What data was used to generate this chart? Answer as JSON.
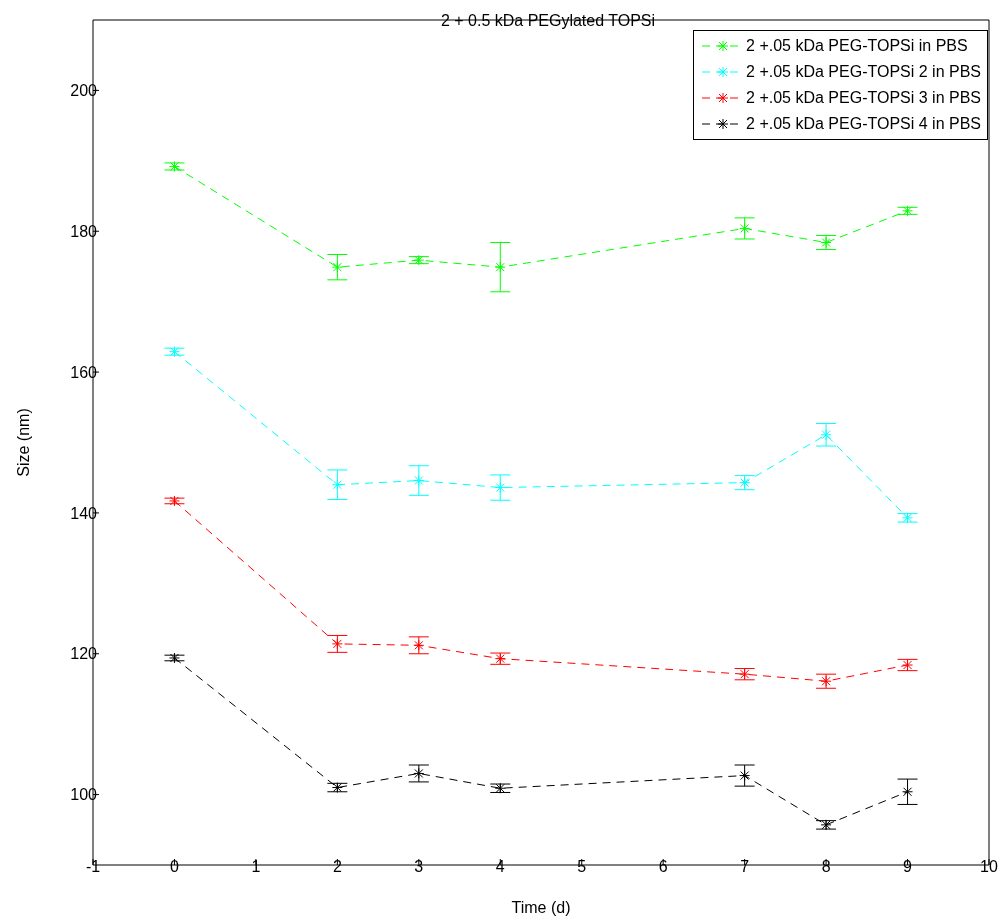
{
  "chart_data": {
    "type": "line",
    "title": "2 + 0.5 kDa PEGylated TOPSi",
    "xlabel": "Time (d)",
    "ylabel": "Size (nm)",
    "x": [
      0,
      2,
      3,
      4,
      7,
      8,
      9
    ],
    "series": [
      {
        "name": "2 +.05 kDa PEG-TOPSi in PBS",
        "color": "#00ff00",
        "values": [
          189.2,
          174.9,
          175.9,
          174.9,
          180.4,
          178.4,
          182.9
        ],
        "errors": [
          0.5,
          1.8,
          0.5,
          3.5,
          1.5,
          1,
          0.5
        ]
      },
      {
        "name": "2 +.05 kDa PEG-TOPSi 2 in PBS",
        "color": "#00ffff",
        "values": [
          162.9,
          144.0,
          144.6,
          143.6,
          144.3,
          151.1,
          139.3
        ],
        "errors": [
          0.5,
          2.1,
          2.1,
          1.8,
          1,
          1.6,
          0.6
        ]
      },
      {
        "name": "2 +.05 kDa PEG-TOPSi 3 in PBS",
        "color": "#ff0000",
        "values": [
          141.7,
          121.4,
          121.2,
          119.3,
          117.1,
          116.1,
          118.4
        ],
        "errors": [
          0.4,
          1.2,
          1.2,
          0.8,
          0.8,
          1,
          0.8
        ]
      },
      {
        "name": "2 +.05 kDa PEG-TOPSi 4 in PBS",
        "color": "#000000",
        "values": [
          119.4,
          101.0,
          103.0,
          100.9,
          102.7,
          95.7,
          100.4
        ],
        "errors": [
          0.4,
          0.6,
          1.2,
          0.6,
          1.5,
          0.6,
          1.8
        ]
      }
    ],
    "xlim": [
      -1,
      10
    ],
    "xticks": [
      -1,
      0,
      1,
      2,
      3,
      4,
      5,
      6,
      7,
      8,
      9,
      10
    ],
    "ylim": [
      90,
      210
    ],
    "yticks": [
      100,
      120,
      140,
      160,
      180,
      200
    ],
    "grid": false,
    "legend": "top right",
    "marker": "cross",
    "line_style": "dashed"
  }
}
